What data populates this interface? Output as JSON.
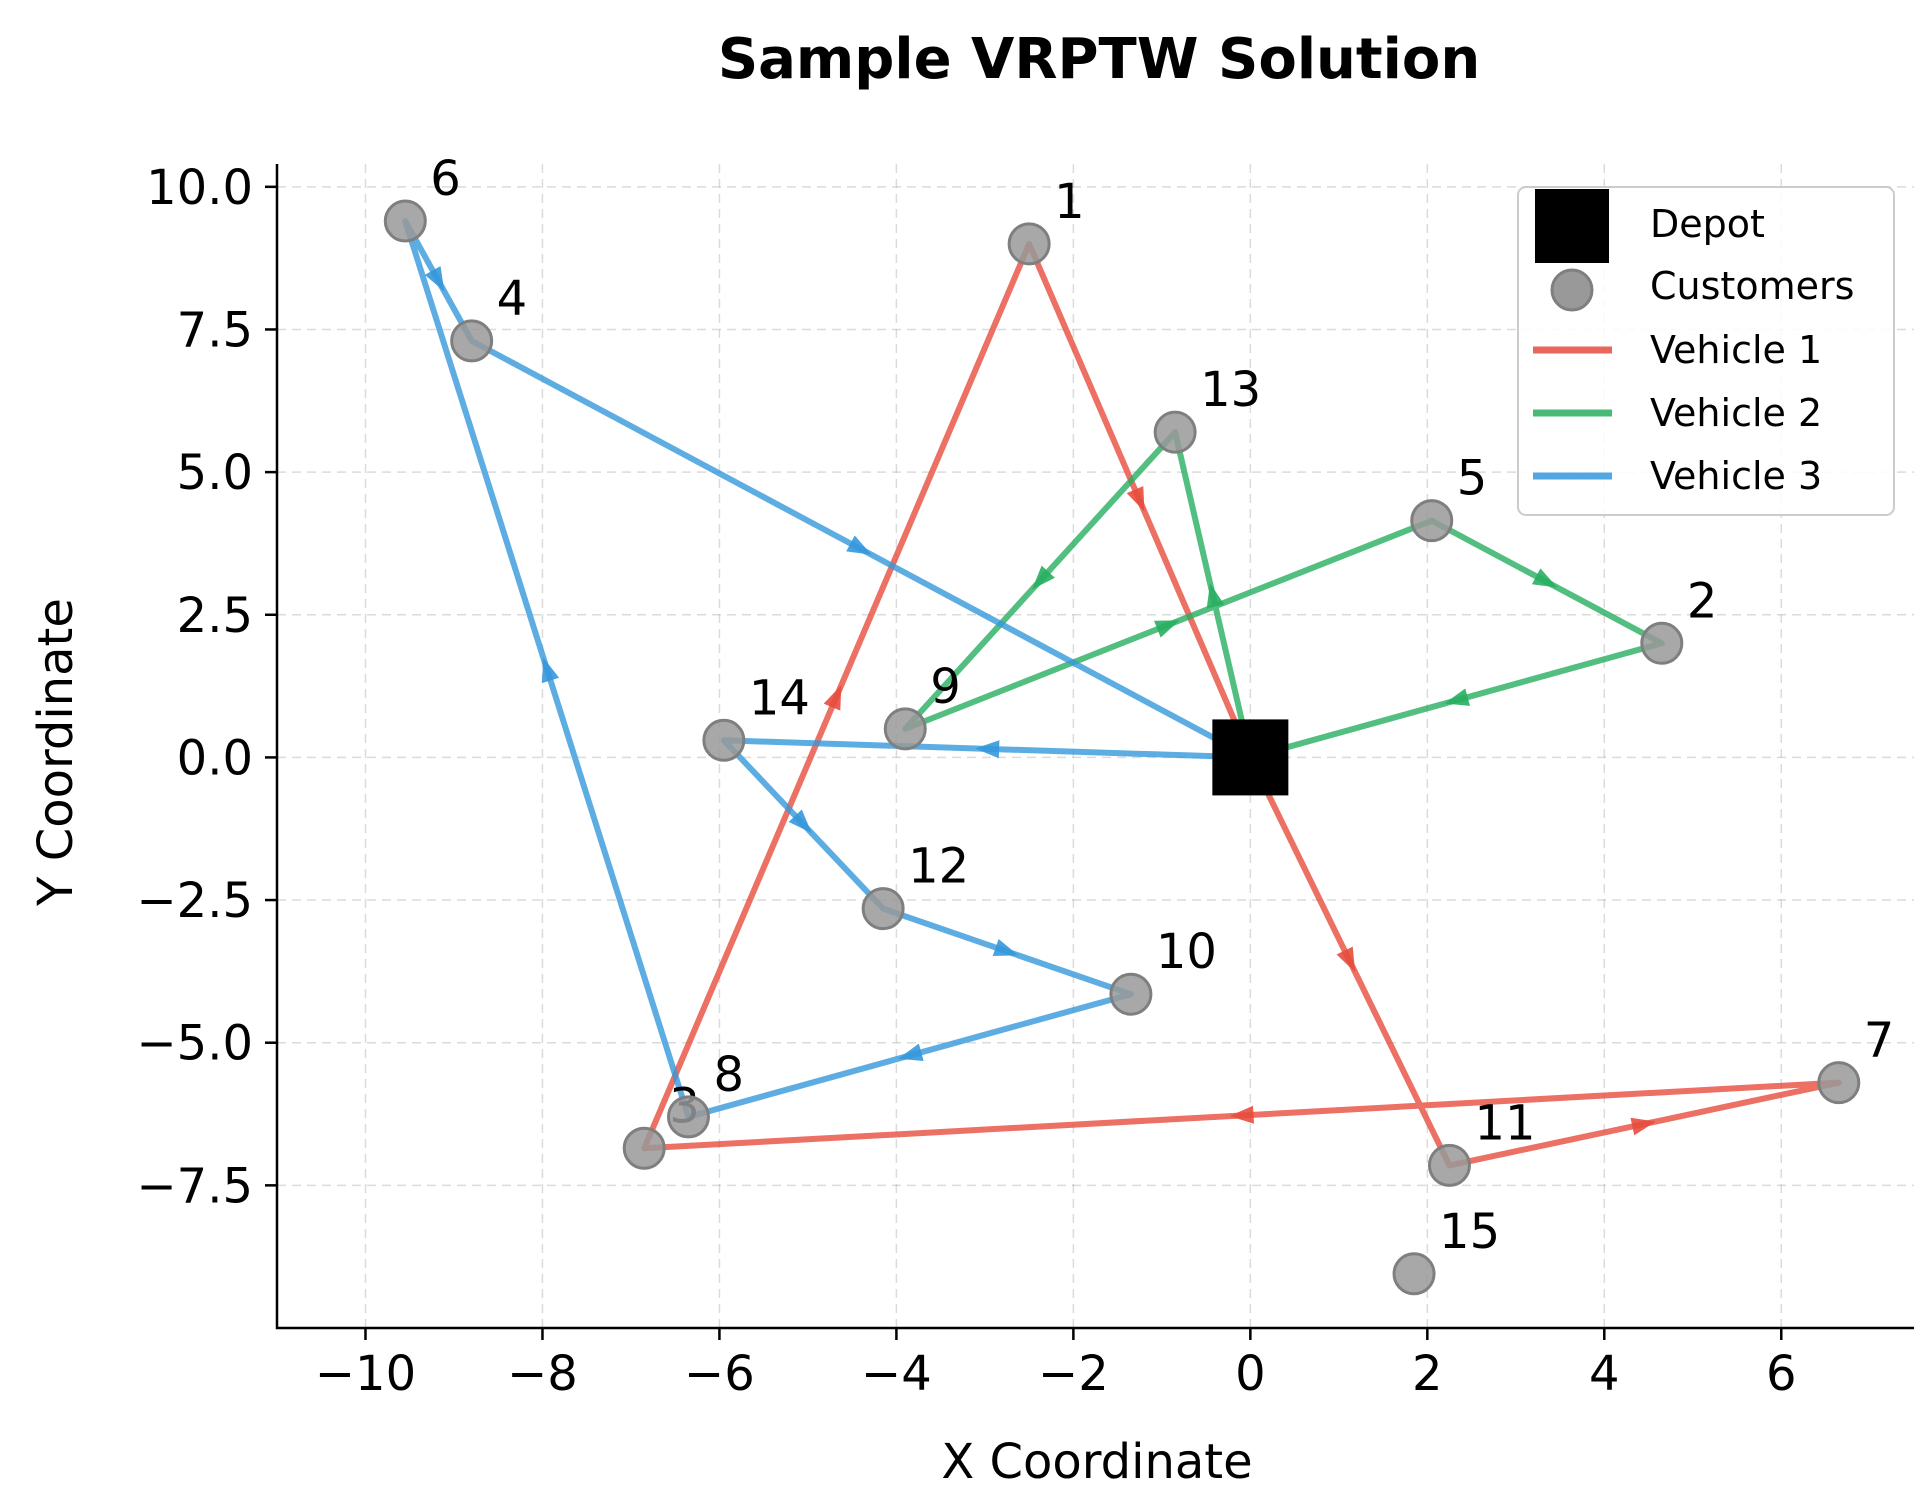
{
  "chart_data": {
    "type": "scatter",
    "title": "Sample VRPTW Solution",
    "xlabel": "X Coordinate",
    "ylabel": "Y Coordinate",
    "xlim": [
      -11,
      7.5
    ],
    "ylim": [
      -10,
      10.4
    ],
    "xticks": [
      -10,
      -8,
      -6,
      -4,
      -2,
      0,
      2,
      4,
      6
    ],
    "xtick_labels": [
      "−10",
      "−8",
      "−6",
      "−4",
      "−2",
      "0",
      "2",
      "4",
      "6"
    ],
    "yticks": [
      10,
      7.5,
      5,
      2.5,
      0,
      -2.5,
      -5,
      -7.5
    ],
    "ytick_labels": [
      "10.0",
      "7.5",
      "5.0",
      "2.5",
      "0.0",
      "−2.5",
      "−5.0",
      "−7.5"
    ],
    "grid": true,
    "legend_position": "top-right",
    "depot": {
      "label": "Depot",
      "x": 0,
      "y": 0,
      "color": "#000000"
    },
    "customers": {
      "label": "Customers",
      "color": "#999999",
      "points": [
        {
          "id": "1",
          "x": -2.5,
          "y": 9.0
        },
        {
          "id": "2",
          "x": 4.65,
          "y": 2.0
        },
        {
          "id": "3",
          "x": -6.85,
          "y": -6.85
        },
        {
          "id": "4",
          "x": -8.8,
          "y": 7.3
        },
        {
          "id": "5",
          "x": 2.05,
          "y": 4.15
        },
        {
          "id": "6",
          "x": -9.55,
          "y": 9.4
        },
        {
          "id": "7",
          "x": 6.65,
          "y": -5.7
        },
        {
          "id": "8",
          "x": -6.35,
          "y": -6.3
        },
        {
          "id": "9",
          "x": -3.9,
          "y": 0.5
        },
        {
          "id": "10",
          "x": -1.35,
          "y": -4.15
        },
        {
          "id": "11",
          "x": 2.25,
          "y": -7.15
        },
        {
          "id": "12",
          "x": -4.15,
          "y": -2.65
        },
        {
          "id": "13",
          "x": -0.85,
          "y": 5.7
        },
        {
          "id": "14",
          "x": -5.95,
          "y": 0.3
        },
        {
          "id": "15",
          "x": 1.85,
          "y": -9.05
        }
      ]
    },
    "series": [
      {
        "name": "Vehicle 1",
        "color": "#e74c3c",
        "route": [
          "depot",
          "11",
          "7",
          "3",
          "1",
          "depot"
        ]
      },
      {
        "name": "Vehicle 2",
        "color": "#27ae60",
        "route": [
          "depot",
          "13",
          "9",
          "5",
          "2",
          "depot"
        ]
      },
      {
        "name": "Vehicle 3",
        "color": "#3498db",
        "route": [
          "depot",
          "14",
          "12",
          "10",
          "8",
          "6",
          "4",
          "depot"
        ]
      }
    ]
  }
}
